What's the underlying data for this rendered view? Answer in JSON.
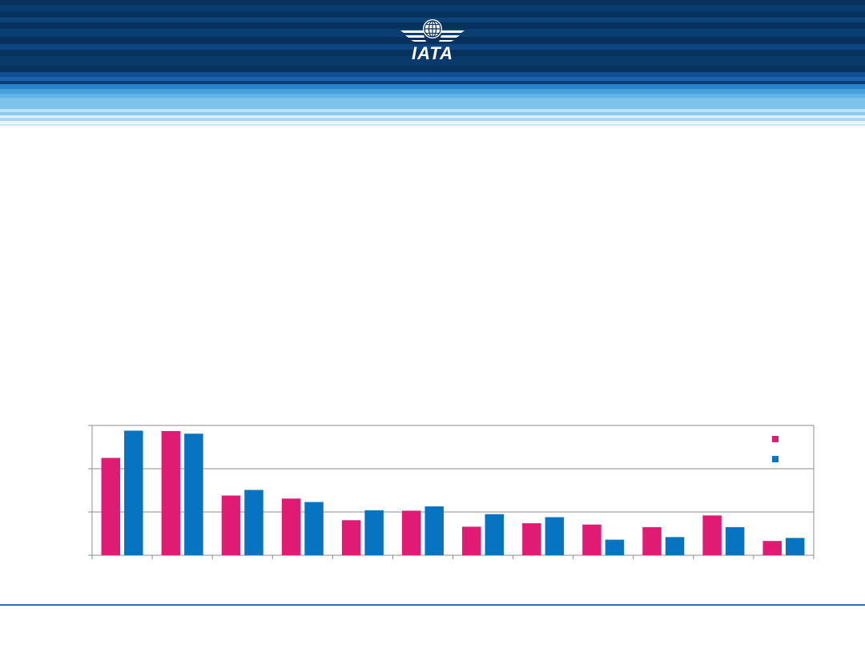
{
  "header": {
    "logo_text": "IATA",
    "colors": {
      "dark_band": "#07325e",
      "mid_band": "#1d6fb8",
      "light_band": "#7cc4ec"
    }
  },
  "chart_data": {
    "type": "bar",
    "title": "",
    "xlabel": "",
    "ylabel": "",
    "ylim": [
      0,
      3
    ],
    "grid": true,
    "legend": "top-right",
    "categories": [
      "",
      "",
      "",
      "",
      "",
      "",
      "",
      "",
      "",
      "",
      "",
      ""
    ],
    "series": [
      {
        "name": "",
        "color": "#e01b74",
        "values": [
          2.25,
          2.87,
          1.38,
          1.31,
          0.81,
          1.03,
          0.66,
          0.74,
          0.71,
          0.65,
          0.92,
          0.33
        ]
      },
      {
        "name": "",
        "color": "#0674c1",
        "values": [
          2.88,
          2.81,
          1.51,
          1.23,
          1.04,
          1.13,
          0.95,
          0.88,
          0.36,
          0.42,
          0.65,
          0.4
        ]
      }
    ]
  }
}
